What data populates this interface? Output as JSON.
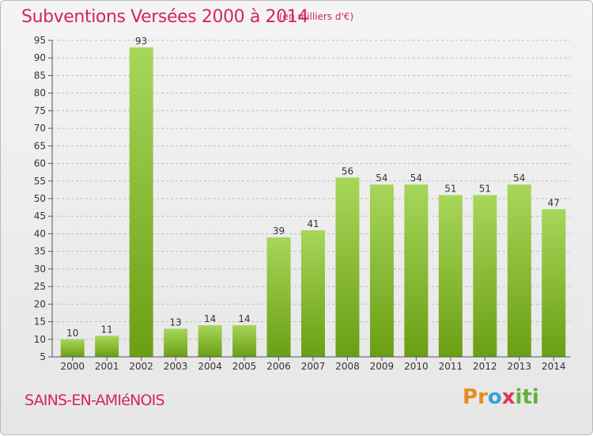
{
  "header": {
    "title": "Subventions Versées 2000 à 2014",
    "unit": "(en milliers d'€)"
  },
  "footer": {
    "commune": "SAINS-EN-AMIéNOIS",
    "logo_letters": [
      "P",
      "r",
      "o",
      "x",
      "i",
      "t",
      "i"
    ],
    "logo_colors": [
      "#e88b1a",
      "#e88b1a",
      "#3aa0d8",
      "#e5335a",
      "#5fb33a",
      "#5fb33a",
      "#5fb33a"
    ]
  },
  "colors": {
    "bar_top": "#a8d65a",
    "bar_bottom": "#6a9f14",
    "grid": "#bdbdbd",
    "title": "#d3255f"
  },
  "chart_data": {
    "type": "bar",
    "categories": [
      "2000",
      "2001",
      "2002",
      "2003",
      "2004",
      "2005",
      "2006",
      "2007",
      "2008",
      "2009",
      "2010",
      "2011",
      "2012",
      "2013",
      "2014"
    ],
    "values": [
      10,
      11,
      93,
      13,
      14,
      14,
      39,
      41,
      56,
      54,
      54,
      51,
      51,
      54,
      47
    ],
    "title": "Subventions Versées 2000 à 2014",
    "subtitle": "(en milliers d'€)",
    "ylim": [
      5,
      95
    ],
    "yticks": [
      5,
      10,
      15,
      20,
      25,
      30,
      35,
      40,
      45,
      50,
      55,
      60,
      65,
      70,
      75,
      80,
      85,
      90,
      95
    ],
    "grid": "horizontal dashed",
    "legend": "none"
  }
}
